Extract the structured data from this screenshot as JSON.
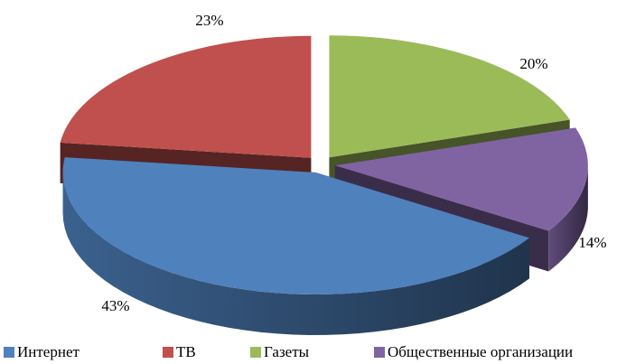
{
  "chart_data": {
    "type": "pie",
    "categories": [
      "Интернет",
      "ТВ",
      "Газеты",
      "Общественные организации"
    ],
    "values": [
      43,
      23,
      20,
      14
    ],
    "value_labels": [
      "43%",
      "23%",
      "20%",
      "14%"
    ],
    "colors": [
      "#4f81bd",
      "#c0504d",
      "#9bbb59",
      "#8064a2"
    ],
    "legend": "bottom"
  }
}
